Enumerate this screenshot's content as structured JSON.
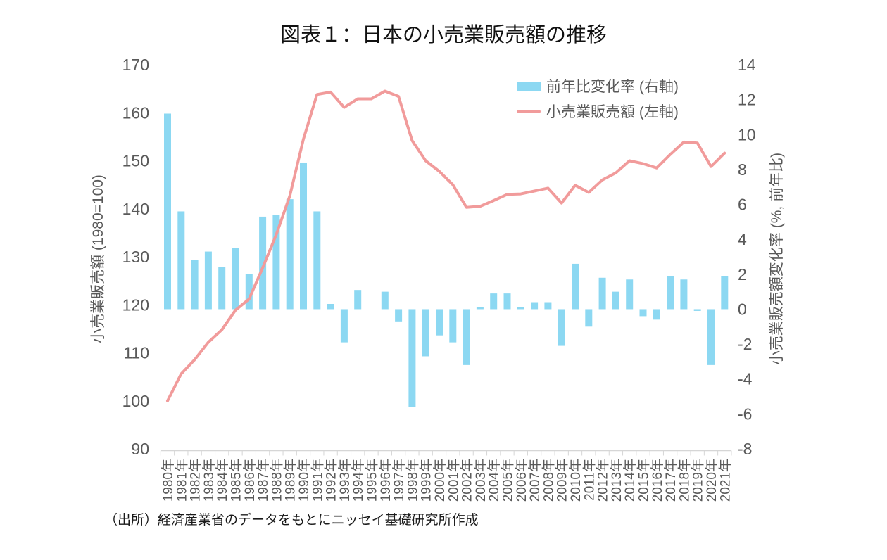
{
  "title": "図表１：日本の小売業販売額の推移",
  "source_note": "（出所）経済産業省のデータをもとにニッセイ基礎研究所作成",
  "legend": {
    "bar_label": "前年比変化率 (右軸)",
    "line_label": "小売業販売額 (左軸)"
  },
  "colors": {
    "bar": "#8CD8F2",
    "line": "#F19B9B",
    "axis_text": "#595959",
    "axis_line": "#D6D6D6",
    "title_text": "#111111"
  },
  "chart_data": {
    "type": "bar",
    "subtype": "combo-bar-line",
    "title": "図表１：日本の小売業販売額の推移",
    "categories": [
      "1980年",
      "1981年",
      "1982年",
      "1983年",
      "1984年",
      "1985年",
      "1986年",
      "1987年",
      "1988年",
      "1989年",
      "1990年",
      "1991年",
      "1992年",
      "1993年",
      "1994年",
      "1995年",
      "1996年",
      "1997年",
      "1998年",
      "1999年",
      "2000年",
      "2001年",
      "2002年",
      "2003年",
      "2004年",
      "2005年",
      "2006年",
      "2007年",
      "2008年",
      "2009年",
      "2010年",
      "2011年",
      "2012年",
      "2013年",
      "2014年",
      "2015年",
      "2016年",
      "2017年",
      "2018年",
      "2019年",
      "2020年",
      "2021年"
    ],
    "series": [
      {
        "name": "前年比変化率 (右軸)",
        "type": "bar",
        "axis": "right",
        "values": [
          11.2,
          5.6,
          2.8,
          3.3,
          2.4,
          3.5,
          2.0,
          5.3,
          5.4,
          6.3,
          8.4,
          5.6,
          0.3,
          -1.9,
          1.1,
          0.0,
          1.0,
          -0.7,
          -5.6,
          -2.7,
          -1.5,
          -1.9,
          -3.2,
          0.1,
          0.9,
          0.9,
          0.1,
          0.4,
          0.4,
          -2.1,
          2.6,
          -1.0,
          1.8,
          1.0,
          1.7,
          -0.4,
          -0.6,
          1.9,
          1.7,
          -0.1,
          -3.2,
          1.9
        ]
      },
      {
        "name": "小売業販売額 (左軸)",
        "type": "line",
        "axis": "left",
        "values": [
          100.0,
          105.6,
          108.6,
          112.2,
          114.8,
          118.9,
          121.2,
          127.7,
          134.6,
          142.7,
          154.5,
          163.8,
          164.3,
          161.1,
          162.9,
          162.9,
          164.5,
          163.4,
          154.2,
          150.0,
          147.8,
          145.0,
          140.3,
          140.5,
          141.7,
          143.0,
          143.1,
          143.7,
          144.3,
          141.2,
          144.9,
          143.4,
          146.0,
          147.5,
          150.0,
          149.4,
          148.5,
          151.3,
          153.9,
          153.7,
          148.8,
          151.6
        ]
      }
    ],
    "left_axis": {
      "title": "小売業販売額 (1980=100)",
      "min": 90,
      "max": 170,
      "ticks": [
        170,
        160,
        150,
        140,
        130,
        120,
        110,
        100,
        90
      ]
    },
    "right_axis": {
      "title": "小売業販売額変化率 (%, 前年比)",
      "min": -8,
      "max": 14,
      "ticks": [
        14,
        12,
        10,
        8,
        6,
        4,
        2,
        0,
        -2,
        -4,
        -6,
        -8
      ]
    },
    "grid": "off",
    "legend_position": "top-right-inside"
  }
}
